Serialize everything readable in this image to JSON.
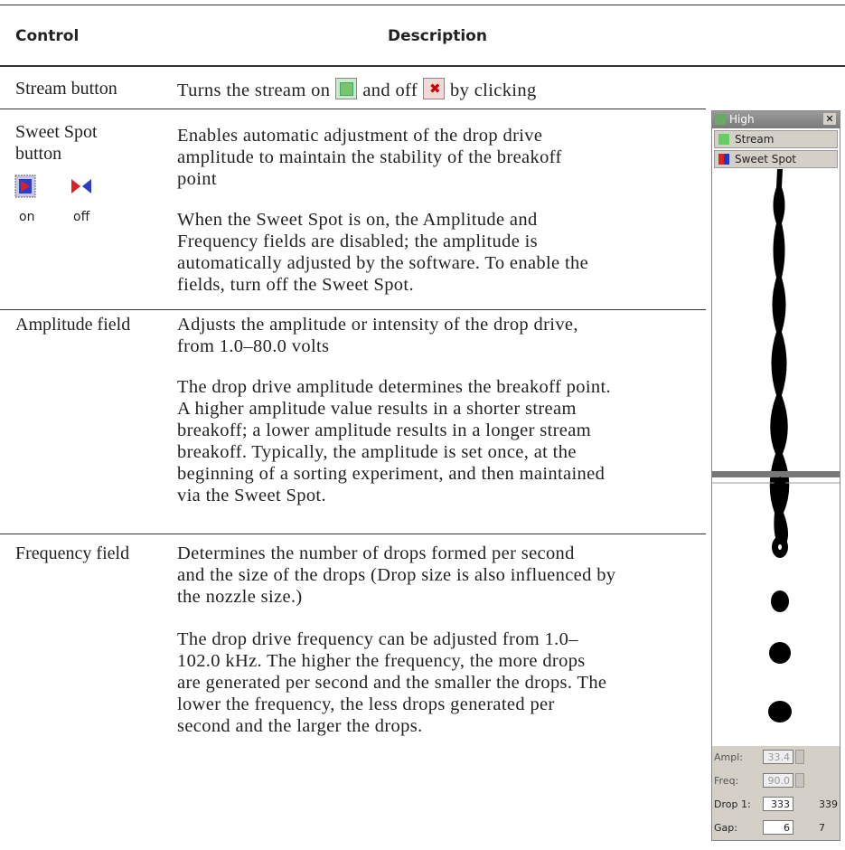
{
  "table": {
    "headers": [
      "Control",
      "Description"
    ],
    "rows": [
      {
        "control": [
          "Stream button"
        ],
        "description": [
          [
            "Turns the stream on",
            "and off",
            "by clicking"
          ]
        ]
      },
      {
        "control": [
          "Sweet Spot",
          "button"
        ],
        "icon_labels": [
          "on",
          "off"
        ],
        "description": [
          [
            "Enables automatic adjustment of the drop drive",
            "amplitude to maintain the stability of the breakoff",
            "point"
          ],
          [
            "When the Sweet Spot is on, the Amplitude and",
            "Frequency fields are disabled; the amplitude is",
            "automatically adjusted by the software. To enable the",
            "fields, turn off the Sweet Spot."
          ]
        ]
      },
      {
        "control": [
          "Amplitude field"
        ],
        "description": [
          [
            "Adjusts the amplitude or intensity of the drop drive,",
            "from 1.0–80.0 volts"
          ],
          [
            "The drop drive amplitude determines the breakoff point.",
            "A higher amplitude value results in a shorter stream",
            "breakoff; a lower amplitude results in a longer stream",
            "breakoff. Typically, the amplitude is set once, at the",
            "beginning of a sorting experiment, and then maintained",
            "via the Sweet Spot."
          ]
        ]
      },
      {
        "control": [
          "Frequency field"
        ],
        "description": [
          [
            "Determines the number of drops formed per second",
            "and the size of the drops (Drop size is also influenced by",
            "the nozzle size.)"
          ],
          [
            "The drop drive frequency can be adjusted from 1.0–",
            "102.0 kHz. The higher the frequency, the more drops",
            "are generated per second and the smaller the drops. The",
            "lower the frequency, the less drops generated per",
            "second and the larger the drops."
          ]
        ]
      }
    ]
  },
  "panel": {
    "title": "High",
    "buttons": [
      "Stream",
      "Sweet Spot"
    ],
    "fields": [
      {
        "label": "Ampl:",
        "value": "33.4"
      },
      {
        "label": "Freq:",
        "value": "90.0"
      },
      {
        "label": "Drop 1:",
        "value": "333",
        "readout": "339"
      },
      {
        "label": "Gap:",
        "value": "6",
        "readout": "7"
      }
    ]
  }
}
